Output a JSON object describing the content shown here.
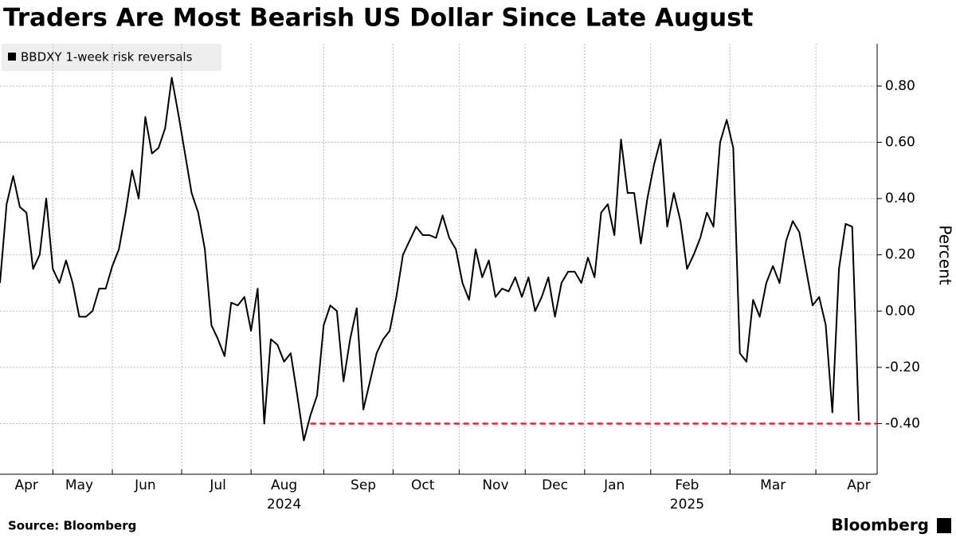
{
  "chart_data": {
    "type": "line",
    "title": "Traders Are Most Bearish US Dollar Since Late August",
    "y_label": "Percent",
    "source": "Source: Bloomberg",
    "brand": "Bloomberg",
    "year_labels": [
      "2024",
      "2025"
    ],
    "categories": [
      null,
      null,
      null,
      null,
      "Apr",
      null,
      null,
      null,
      null,
      null,
      null,
      null,
      "May",
      null,
      null,
      null,
      null,
      null,
      null,
      null,
      null,
      null,
      "Jun",
      null,
      null,
      null,
      null,
      null,
      null,
      null,
      null,
      null,
      null,
      "Jul",
      null,
      null,
      null,
      null,
      null,
      null,
      null,
      null,
      null,
      "Aug",
      null,
      null,
      null,
      null,
      null,
      null,
      null,
      null,
      null,
      null,
      null,
      "Sep",
      null,
      null,
      null,
      null,
      null,
      null,
      null,
      null,
      "Oct",
      null,
      null,
      null,
      null,
      null,
      null,
      null,
      null,
      null,
      null,
      "Nov",
      null,
      null,
      null,
      null,
      null,
      null,
      null,
      null,
      "Dec",
      null,
      null,
      null,
      null,
      null,
      null,
      null,
      null,
      "Jan",
      null,
      null,
      null,
      null,
      null,
      null,
      null,
      null,
      null,
      null,
      "Feb",
      null,
      null,
      null,
      null,
      null,
      null,
      null,
      null,
      null,
      null,
      null,
      null,
      "Mar",
      null,
      null,
      null,
      null,
      null,
      null,
      null,
      null,
      null,
      null,
      null,
      null,
      "Apr"
    ],
    "series": [
      {
        "name": "BBDXY 1-week risk reversals",
        "color": "#000000",
        "values": [
          0.1,
          0.38,
          0.48,
          0.37,
          0.35,
          0.15,
          0.2,
          0.4,
          0.15,
          0.1,
          0.18,
          0.1,
          -0.02,
          -0.02,
          0.0,
          0.08,
          0.08,
          0.16,
          0.22,
          0.35,
          0.5,
          0.4,
          0.69,
          0.56,
          0.58,
          0.65,
          0.83,
          0.7,
          0.56,
          0.42,
          0.35,
          0.22,
          -0.05,
          -0.1,
          -0.16,
          0.03,
          0.02,
          0.05,
          -0.07,
          0.08,
          -0.4,
          -0.1,
          -0.12,
          -0.18,
          -0.15,
          -0.3,
          -0.46,
          -0.37,
          -0.3,
          -0.05,
          0.02,
          0.0,
          -0.25,
          -0.1,
          0.01,
          -0.35,
          -0.25,
          -0.15,
          -0.1,
          -0.07,
          0.05,
          0.2,
          0.25,
          0.3,
          0.27,
          0.27,
          0.26,
          0.34,
          0.26,
          0.22,
          0.1,
          0.04,
          0.22,
          0.12,
          0.18,
          0.05,
          0.08,
          0.07,
          0.12,
          0.05,
          0.12,
          0.0,
          0.05,
          0.12,
          -0.02,
          0.1,
          0.14,
          0.14,
          0.1,
          0.19,
          0.12,
          0.35,
          0.38,
          0.27,
          0.61,
          0.42,
          0.42,
          0.24,
          0.4,
          0.52,
          0.61,
          0.3,
          0.42,
          0.32,
          0.15,
          0.2,
          0.26,
          0.35,
          0.3,
          0.6,
          0.68,
          0.58,
          -0.15,
          -0.18,
          0.04,
          -0.02,
          0.1,
          0.16,
          0.1,
          0.25,
          0.32,
          0.28,
          0.15,
          0.02,
          0.05,
          -0.05,
          -0.36,
          0.15,
          0.31,
          0.3,
          -0.39
        ]
      }
    ],
    "reference_line": {
      "value": -0.4,
      "color": "#e8213d"
    },
    "ylim": [
      -0.58,
      0.95
    ],
    "yticks": [
      {
        "value": -0.4,
        "label": "-0.40"
      },
      {
        "value": -0.2,
        "label": "-0.20"
      },
      {
        "value": 0,
        "label": "0.00"
      },
      {
        "value": 0.2,
        "label": "0.20"
      },
      {
        "value": 0.4,
        "label": "0.40"
      },
      {
        "value": 0.6,
        "label": "0.60"
      },
      {
        "value": 0.8,
        "label": "0.80"
      }
    ],
    "grid": true
  }
}
